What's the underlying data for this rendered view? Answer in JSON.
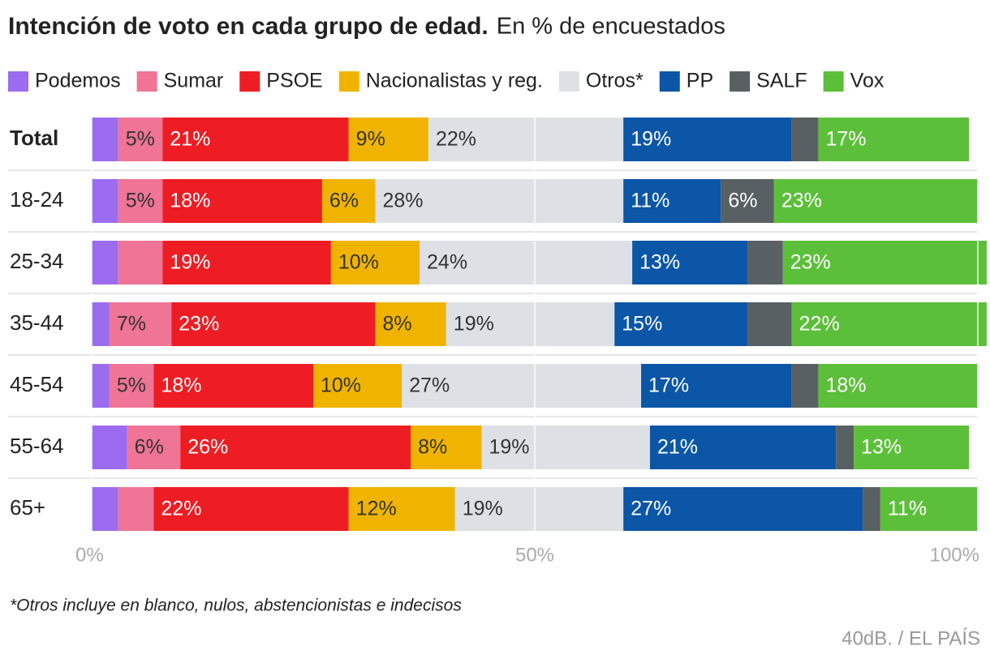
{
  "chart_data": {
    "type": "stacked-bar-horizontal",
    "title": "Intención de voto en cada grupo de edad.",
    "subtitle": "En % de encuestados",
    "categories": [
      "Total",
      "18-24",
      "25-34",
      "35-44",
      "45-54",
      "55-64",
      "65+"
    ],
    "series": [
      {
        "name": "Podemos",
        "color": "#9b6cf0",
        "values": [
          3,
          3,
          3,
          2,
          2,
          4,
          3
        ],
        "value_labels": [
          null,
          null,
          null,
          null,
          null,
          null,
          null
        ]
      },
      {
        "name": "Sumar",
        "color": "#ef7495",
        "values": [
          5,
          5,
          5,
          7,
          5,
          6,
          4
        ],
        "value_labels": [
          "5%",
          "5%",
          null,
          "7%",
          "5%",
          "6%",
          null
        ]
      },
      {
        "name": "PSOE",
        "color": "#ee1d24",
        "values": [
          21,
          18,
          19,
          23,
          18,
          26,
          22
        ],
        "value_labels": [
          "21%",
          "18%",
          "19%",
          "23%",
          "18%",
          "26%",
          "22%"
        ]
      },
      {
        "name": "Nacionalistas y reg.",
        "color": "#f0b400",
        "values": [
          9,
          6,
          10,
          8,
          10,
          8,
          12
        ],
        "value_labels": [
          "9%",
          "6%",
          "10%",
          "8%",
          "10%",
          "8%",
          "12%"
        ]
      },
      {
        "name": "Otros*",
        "color": "#dde1e5",
        "values": [
          22,
          28,
          24,
          19,
          27,
          19,
          19
        ],
        "value_labels": [
          "22%",
          "28%",
          "24%",
          "19%",
          "27%",
          "19%",
          "19%"
        ]
      },
      {
        "name": "PP",
        "color": "#0b56a6",
        "values": [
          19,
          11,
          13,
          15,
          17,
          21,
          27
        ],
        "value_labels": [
          "19%",
          "11%",
          "13%",
          "15%",
          "17%",
          "21%",
          "27%"
        ]
      },
      {
        "name": "SALF",
        "color": "#586064",
        "values": [
          3,
          6,
          4,
          5,
          3,
          2,
          2
        ],
        "value_labels": [
          null,
          "6%",
          null,
          null,
          null,
          null,
          null
        ]
      },
      {
        "name": "Vox",
        "color": "#5cbf3a",
        "values": [
          17,
          23,
          23,
          22,
          18,
          13,
          11
        ],
        "value_labels": [
          "17%",
          "23%",
          "23%",
          "22%",
          "18%",
          "13%",
          "11%"
        ]
      }
    ],
    "xlim": [
      0,
      100
    ],
    "xticks": [
      {
        "value": 0,
        "label": "0%"
      },
      {
        "value": 50,
        "label": "50%"
      },
      {
        "value": 100,
        "label": "100%"
      }
    ],
    "grid": true,
    "footnote": "*Otros incluye en blanco, nulos, abstencionistas e indecisos",
    "source": "40dB. / EL PAÍS"
  }
}
